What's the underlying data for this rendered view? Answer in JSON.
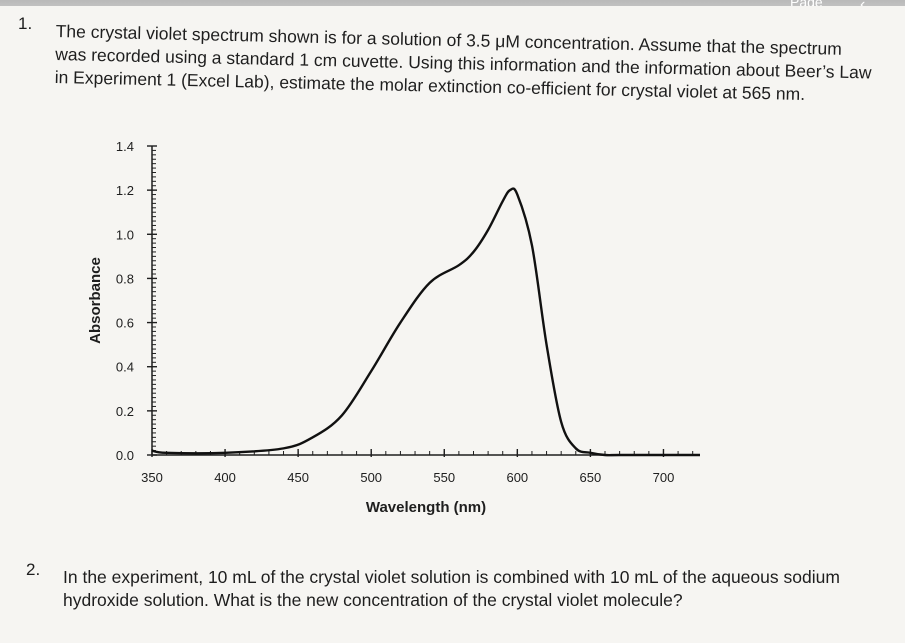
{
  "header": {
    "page_label": "Page",
    "back_icon": "chevron-left-icon"
  },
  "question1": {
    "number": "1.",
    "text": "The crystal violet spectrum shown is for a solution of 3.5 μM concentration. Assume that the spectrum was recorded using a standard 1 cm cuvette. Using this information and the information about Beer’s Law in Experiment 1 (Excel Lab), estimate the molar extinction co-efficient for crystal violet at 565 nm."
  },
  "question2": {
    "number": "2.",
    "text": "In the experiment, 10 mL of the crystal violet solution is combined with 10 mL of the aqueous sodium hydroxide solution. What is the new concentration of the crystal violet molecule?"
  },
  "chart_data": {
    "type": "line",
    "xlabel": "Wavelength (nm)",
    "ylabel": "Absorbance",
    "xlim": [
      350,
      725
    ],
    "ylim": [
      0,
      1.4
    ],
    "x_ticks": [
      "350",
      "400",
      "450",
      "500",
      "550",
      "600",
      "650",
      "700"
    ],
    "y_ticks": [
      "0.0",
      "0.2",
      "0.4",
      "0.6",
      "0.8",
      "1.0",
      "1.2",
      "1.4"
    ],
    "series": [
      {
        "x": [
          350,
          360,
          400,
          440,
          460,
          480,
          500,
          520,
          540,
          560,
          570,
          580,
          590,
          595,
          600,
          610,
          620,
          630,
          640,
          650,
          660,
          670,
          700,
          725
        ],
        "y": [
          0.02,
          0.01,
          0.01,
          0.03,
          0.08,
          0.18,
          0.38,
          0.6,
          0.78,
          0.86,
          0.92,
          1.02,
          1.15,
          1.2,
          1.18,
          0.95,
          0.5,
          0.15,
          0.03,
          0.01,
          0.0,
          0.0,
          0.0,
          0.0
        ]
      }
    ],
    "grid": false,
    "legend": "none"
  }
}
